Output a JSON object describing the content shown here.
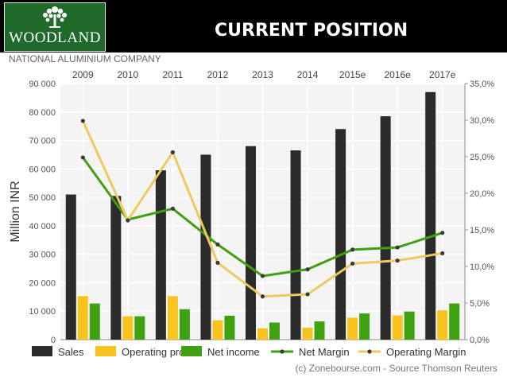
{
  "header": {
    "logo_text": "WOODLAND",
    "title": "CURRENT POSITION",
    "colors": {
      "background": "#000000",
      "logo_bg": "#1f6a2a"
    }
  },
  "company": "NATIONAL ALUMINIUM COMPANY",
  "footer": "(c) Zonebourse.com - Source Thomson Reuters",
  "chart_data": {
    "type": "bar",
    "categories": [
      "2009",
      "2010",
      "2011",
      "2012",
      "2013",
      "2014",
      "2015e",
      "2016e",
      "2017e"
    ],
    "ylabel": "Million INR",
    "ylim": [
      0,
      90000
    ],
    "y_ticks": [
      "0",
      "10 000",
      "20 000",
      "30 000",
      "40 000",
      "50 000",
      "60 000",
      "70 000",
      "80 000",
      "90 000"
    ],
    "y2lim": [
      0,
      35
    ],
    "y2_ticks": [
      "0,0%",
      "5,0%",
      "10,0%",
      "15,0%",
      "20,0%",
      "25,0%",
      "30,0%",
      "35,0%"
    ],
    "grid": true,
    "legend_position": "bottom",
    "series": [
      {
        "name": "Sales",
        "kind": "bar",
        "color": "#2b2b2b",
        "values": [
          51000,
          50500,
          59500,
          65000,
          68000,
          66500,
          74000,
          78500,
          87000
        ]
      },
      {
        "name": "Operating profit",
        "kind": "bar",
        "color": "#f7c41f",
        "values": [
          15300,
          8200,
          15300,
          6800,
          4000,
          4200,
          7700,
          8500,
          10300
        ]
      },
      {
        "name": "Net income",
        "kind": "bar",
        "color": "#3fa010",
        "values": [
          12700,
          8200,
          10700,
          8400,
          6000,
          6400,
          9200,
          9900,
          12700
        ]
      },
      {
        "name": "Net Margin",
        "kind": "line",
        "axis": "right",
        "color": "#3fa010",
        "values": [
          24.9,
          16.4,
          17.9,
          13.0,
          8.7,
          9.6,
          12.3,
          12.6,
          14.6
        ]
      },
      {
        "name": "Operating Margin",
        "kind": "line",
        "axis": "right",
        "color": "#f0c860",
        "values": [
          29.9,
          16.3,
          25.6,
          10.5,
          5.9,
          6.2,
          10.4,
          10.8,
          11.8
        ]
      }
    ]
  }
}
